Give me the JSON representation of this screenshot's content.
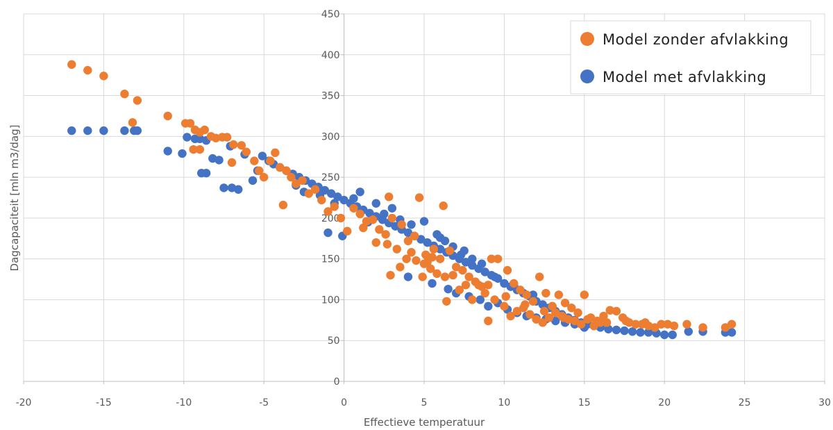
{
  "chart_data": {
    "type": "scatter",
    "xlabel": "Effectieve temperatuur",
    "ylabel": "Dagcapaciteit [mln m3/dag]",
    "xlim": [
      -20,
      30
    ],
    "ylim": [
      0,
      450
    ],
    "x_ticks": [
      -20,
      -15,
      -10,
      -5,
      0,
      5,
      10,
      15,
      20,
      25,
      30
    ],
    "y_ticks": [
      0,
      50,
      100,
      150,
      200,
      250,
      300,
      350,
      400,
      450
    ],
    "grid": true,
    "legend_position": "top-right",
    "series": [
      {
        "name": "Model met afvlakking",
        "color": "#4472C4",
        "points": [
          [
            -17,
            307
          ],
          [
            -16,
            307
          ],
          [
            -15,
            307
          ],
          [
            -13.7,
            307
          ],
          [
            -13.1,
            307
          ],
          [
            -12.9,
            307
          ],
          [
            -11,
            282
          ],
          [
            -9.8,
            299
          ],
          [
            -9.3,
            297
          ],
          [
            -9,
            297
          ],
          [
            -8.6,
            295
          ],
          [
            -8.2,
            273
          ],
          [
            -7.8,
            271
          ],
          [
            -7.5,
            237
          ],
          [
            -7,
            237
          ],
          [
            -6.6,
            235
          ],
          [
            -10.1,
            279
          ],
          [
            -8.9,
            255
          ],
          [
            -8.6,
            255
          ],
          [
            -7.1,
            288
          ],
          [
            -6.2,
            278
          ],
          [
            -5.7,
            246
          ],
          [
            -5.4,
            258
          ],
          [
            -5.1,
            276
          ],
          [
            -4.7,
            270
          ],
          [
            -4.4,
            266
          ],
          [
            -4,
            262
          ],
          [
            -3.6,
            258
          ],
          [
            -3.2,
            254
          ],
          [
            -2.8,
            250
          ],
          [
            -2.4,
            246
          ],
          [
            -2,
            242
          ],
          [
            -1.6,
            238
          ],
          [
            -1.2,
            234
          ],
          [
            -0.8,
            230
          ],
          [
            -0.4,
            226
          ],
          [
            0,
            222
          ],
          [
            0.4,
            218
          ],
          [
            0.8,
            214
          ],
          [
            1.2,
            210
          ],
          [
            1.6,
            206
          ],
          [
            2,
            202
          ],
          [
            2.4,
            198
          ],
          [
            2.8,
            194
          ],
          [
            3.2,
            190
          ],
          [
            3.6,
            186
          ],
          [
            4,
            182
          ],
          [
            4.4,
            178
          ],
          [
            4.8,
            174
          ],
          [
            5.2,
            170
          ],
          [
            5.6,
            166
          ],
          [
            6,
            162
          ],
          [
            6.4,
            158
          ],
          [
            6.8,
            154
          ],
          [
            7.2,
            150
          ],
          [
            7.6,
            146
          ],
          [
            8,
            142
          ],
          [
            8.4,
            138
          ],
          [
            8.8,
            134
          ],
          [
            9.2,
            130
          ],
          [
            9.6,
            126
          ],
          [
            10,
            120
          ],
          [
            10.4,
            116
          ],
          [
            10.8,
            112
          ],
          [
            11.2,
            108
          ],
          [
            11.6,
            104
          ],
          [
            12,
            98
          ],
          [
            12.4,
            94
          ],
          [
            12.8,
            90
          ],
          [
            13.2,
            86
          ],
          [
            13.6,
            82
          ],
          [
            14,
            78
          ],
          [
            14.4,
            75
          ],
          [
            14.8,
            72
          ],
          [
            15.2,
            70
          ],
          [
            15.6,
            68
          ],
          [
            16,
            66
          ],
          [
            16.5,
            64
          ],
          [
            17,
            63
          ],
          [
            17.5,
            62
          ],
          [
            18,
            61
          ],
          [
            18.5,
            60
          ],
          [
            19,
            60
          ],
          [
            19.5,
            59
          ],
          [
            20,
            57
          ],
          [
            20.5,
            57
          ],
          [
            21.5,
            61
          ],
          [
            22.4,
            61
          ],
          [
            23.8,
            60
          ],
          [
            24.2,
            60
          ],
          [
            -1,
            182
          ],
          [
            -0.1,
            178
          ],
          [
            1.5,
            195
          ],
          [
            2.5,
            205
          ],
          [
            3.5,
            198
          ],
          [
            5,
            196
          ],
          [
            6,
            176
          ],
          [
            6.8,
            165
          ],
          [
            7.5,
            160
          ],
          [
            8,
            150
          ],
          [
            4,
            128
          ],
          [
            5.5,
            120
          ],
          [
            6.5,
            113
          ],
          [
            7,
            108
          ],
          [
            7.8,
            104
          ],
          [
            8.5,
            100
          ],
          [
            9,
            92
          ],
          [
            9.6,
            96
          ],
          [
            10.2,
            88
          ],
          [
            10.8,
            84
          ],
          [
            11.4,
            80
          ],
          [
            12,
            78
          ],
          [
            12.6,
            76
          ],
          [
            13.2,
            74
          ],
          [
            13.8,
            72
          ],
          [
            14.4,
            70
          ],
          [
            15,
            66
          ],
          [
            -3,
            240
          ],
          [
            -2.5,
            232
          ],
          [
            -1.5,
            228
          ],
          [
            -0.6,
            218
          ],
          [
            0.6,
            224
          ],
          [
            1,
            232
          ],
          [
            2,
            218
          ],
          [
            3,
            212
          ],
          [
            4.2,
            192
          ],
          [
            5.8,
            180
          ],
          [
            6.3,
            172
          ],
          [
            7.3,
            155
          ],
          [
            8.6,
            144
          ],
          [
            9.4,
            128
          ],
          [
            10.6,
            118
          ],
          [
            11.8,
            106
          ],
          [
            13,
            92
          ]
        ]
      },
      {
        "name": "Model zonder afvlakking",
        "color": "#ED7D31",
        "points": [
          [
            -17,
            388
          ],
          [
            -16,
            381
          ],
          [
            -15,
            374
          ],
          [
            -13.7,
            352
          ],
          [
            -13.2,
            317
          ],
          [
            -12.9,
            344
          ],
          [
            -11,
            325
          ],
          [
            -9.9,
            316
          ],
          [
            -9.6,
            316
          ],
          [
            -9.3,
            308
          ],
          [
            -9,
            305
          ],
          [
            -8.7,
            308
          ],
          [
            -8.3,
            300
          ],
          [
            -8,
            298
          ],
          [
            -7.6,
            299
          ],
          [
            -7.3,
            299
          ],
          [
            -9.4,
            284
          ],
          [
            -9,
            284
          ],
          [
            -6.9,
            290
          ],
          [
            -6.4,
            289
          ],
          [
            -6.1,
            281
          ],
          [
            -7,
            268
          ],
          [
            -5.6,
            270
          ],
          [
            -5.3,
            258
          ],
          [
            -5,
            250
          ],
          [
            -4.6,
            270
          ],
          [
            -4.3,
            280
          ],
          [
            -4,
            262
          ],
          [
            -3.6,
            258
          ],
          [
            -3.3,
            250
          ],
          [
            -3.8,
            216
          ],
          [
            -3,
            242
          ],
          [
            -2.6,
            246
          ],
          [
            -2.2,
            230
          ],
          [
            -1.8,
            235
          ],
          [
            -1.4,
            222
          ],
          [
            -1,
            208
          ],
          [
            -0.6,
            214
          ],
          [
            -0.2,
            200
          ],
          [
            0.2,
            184
          ],
          [
            0.6,
            212
          ],
          [
            1,
            205
          ],
          [
            1.4,
            196
          ],
          [
            1.8,
            198
          ],
          [
            2.2,
            186
          ],
          [
            2.6,
            180
          ],
          [
            3,
            200
          ],
          [
            2.8,
            226
          ],
          [
            3.6,
            192
          ],
          [
            4,
            172
          ],
          [
            4.4,
            178
          ],
          [
            4.7,
            225
          ],
          [
            5.1,
            155
          ],
          [
            5.6,
            162
          ],
          [
            6,
            150
          ],
          [
            6.2,
            215
          ],
          [
            5,
            144
          ],
          [
            5.4,
            138
          ],
          [
            5.8,
            132
          ],
          [
            6.3,
            128
          ],
          [
            6.6,
            160
          ],
          [
            7,
            140
          ],
          [
            7.4,
            136
          ],
          [
            7.8,
            128
          ],
          [
            8.2,
            122
          ],
          [
            8.6,
            116
          ],
          [
            9,
            118
          ],
          [
            9.2,
            150
          ],
          [
            9.6,
            150
          ],
          [
            10.2,
            136
          ],
          [
            10.6,
            120
          ],
          [
            11,
            112
          ],
          [
            11.4,
            106
          ],
          [
            11.8,
            98
          ],
          [
            12.2,
            128
          ],
          [
            12.6,
            108
          ],
          [
            13,
            92
          ],
          [
            13.4,
            106
          ],
          [
            13.8,
            96
          ],
          [
            14.2,
            90
          ],
          [
            14.6,
            84
          ],
          [
            15,
            106
          ],
          [
            15.4,
            78
          ],
          [
            15.8,
            74
          ],
          [
            16.2,
            80
          ],
          [
            16.6,
            87
          ],
          [
            17,
            86
          ],
          [
            17.4,
            78
          ],
          [
            17.8,
            72
          ],
          [
            18.2,
            70
          ],
          [
            18.6,
            70
          ],
          [
            19,
            68
          ],
          [
            19.4,
            66
          ],
          [
            19.8,
            70
          ],
          [
            20.2,
            70
          ],
          [
            20.6,
            68
          ],
          [
            21.4,
            70
          ],
          [
            22.4,
            66
          ],
          [
            23.8,
            66
          ],
          [
            24.2,
            70
          ],
          [
            1.2,
            188
          ],
          [
            2,
            170
          ],
          [
            2.7,
            168
          ],
          [
            3.3,
            162
          ],
          [
            3.9,
            150
          ],
          [
            4.5,
            148
          ],
          [
            5.2,
            146
          ],
          [
            6.4,
            98
          ],
          [
            7.2,
            112
          ],
          [
            8,
            100
          ],
          [
            8.4,
            118
          ],
          [
            9,
            74
          ],
          [
            9.4,
            100
          ],
          [
            10,
            92
          ],
          [
            10.4,
            80
          ],
          [
            10.8,
            86
          ],
          [
            11.2,
            90
          ],
          [
            11.6,
            82
          ],
          [
            12,
            76
          ],
          [
            12.4,
            72
          ],
          [
            12.8,
            78
          ],
          [
            13.2,
            84
          ],
          [
            13.6,
            80
          ],
          [
            14,
            76
          ],
          [
            14.4,
            74
          ],
          [
            14.8,
            70
          ],
          [
            15.6,
            68
          ],
          [
            16,
            72
          ],
          [
            2.9,
            130
          ],
          [
            3.5,
            140
          ],
          [
            4.2,
            158
          ],
          [
            4.9,
            128
          ],
          [
            5.5,
            152
          ],
          [
            6.8,
            130
          ],
          [
            7.6,
            118
          ],
          [
            8.8,
            108
          ],
          [
            10.1,
            104
          ],
          [
            11.3,
            94
          ],
          [
            12.5,
            86
          ],
          [
            13.7,
            78
          ],
          [
            15.2,
            76
          ],
          [
            16.4,
            72
          ],
          [
            17.6,
            74
          ],
          [
            18.8,
            72
          ]
        ]
      }
    ]
  }
}
